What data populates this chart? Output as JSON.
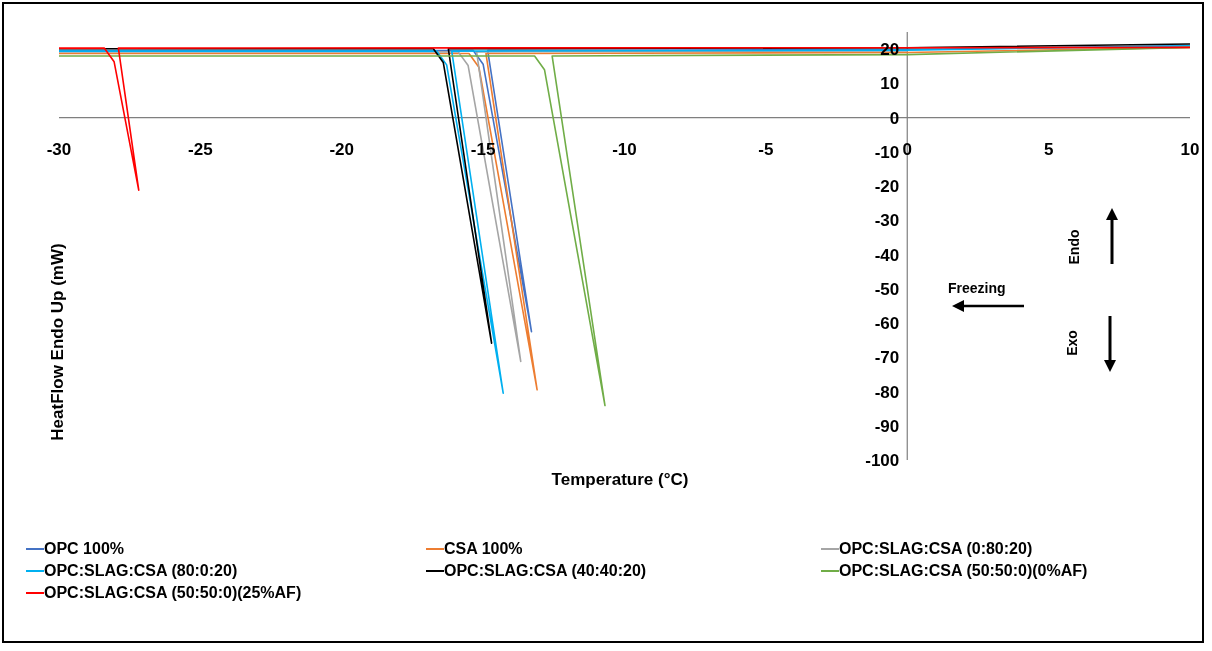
{
  "chart_data": {
    "type": "line",
    "xlabel": "Temperature (°C)",
    "ylabel": "HeatFlow Endo Up (mW)",
    "xlim": [
      -30,
      10
    ],
    "xticks": [
      -30,
      -25,
      -20,
      -15,
      -10,
      -5,
      0,
      5,
      10
    ],
    "ylim": [
      -100,
      25
    ],
    "yticks": [
      -100,
      -90,
      -80,
      -70,
      -60,
      -50,
      -40,
      -30,
      -20,
      -10,
      0,
      10,
      20
    ],
    "grid": false,
    "legend": "bottom",
    "marker": "none",
    "line_style": "solid",
    "annotations": [
      "Freezing",
      "Endo",
      "Exo"
    ],
    "series": [
      {
        "name": "OPC 100%",
        "color": "#4472c4",
        "x": [
          10,
          0,
          -14.84,
          -13.29,
          -15.0,
          -15.35,
          -30
        ],
        "values": [
          21,
          19.9,
          19.6,
          -62.5,
          15.6,
          19.6,
          19.6
        ]
      },
      {
        "name": "CSA 100%",
        "color": "#ed7d31",
        "x": [
          10,
          0,
          -14.9,
          -13.09,
          -15.15,
          -15.5,
          -30
        ],
        "values": [
          20.5,
          19,
          18.7,
          -79.5,
          14.7,
          18.7,
          18.7
        ]
      },
      {
        "name": "OPC:SLAG:CSA (0:80:20)",
        "color": "#a5a5a5",
        "x": [
          0,
          -15.23,
          -13.67,
          -15.53,
          -15.88,
          -30
        ],
        "values": [
          19.5,
          19.2,
          -71.2,
          15.2,
          19.2,
          19.2
        ]
      },
      {
        "name": "OPC:SLAG:CSA (80:0:20)",
        "color": "#00b0f0",
        "x": [
          10,
          0,
          -16.11,
          -14.29,
          -16.29,
          -16.64,
          -30
        ],
        "values": [
          21,
          19.7,
          19.4,
          -80.5,
          15.4,
          19.4,
          19.4
        ]
      },
      {
        "name": "OPC:SLAG:CSA (40:40:20)",
        "color": "#000000",
        "x": [
          10,
          0,
          -16.23,
          -14.7,
          -16.41,
          -16.76,
          -30
        ],
        "values": [
          21.5,
          20.4,
          20.1,
          -65.9,
          16.1,
          20.1,
          20.1
        ]
      },
      {
        "name": "OPC:SLAG:CSA (50:50:0)(0%AF)",
        "color": "#70ad47",
        "x": [
          10,
          0,
          -12.56,
          -10.69,
          -12.83,
          -13.18,
          -30
        ],
        "values": [
          20.5,
          18.4,
          18.0,
          -84.1,
          14.0,
          18.0,
          18.0
        ]
      },
      {
        "name": "OPC:SLAG:CSA (50:50:0)(25%AF)",
        "color": "#ff0000",
        "x": [
          10,
          0,
          -27.9,
          -27.18,
          -28.05,
          -28.4,
          -30
        ],
        "values": [
          20.5,
          20.4,
          20.3,
          -21.2,
          16.3,
          20.3,
          20.3
        ]
      }
    ]
  }
}
